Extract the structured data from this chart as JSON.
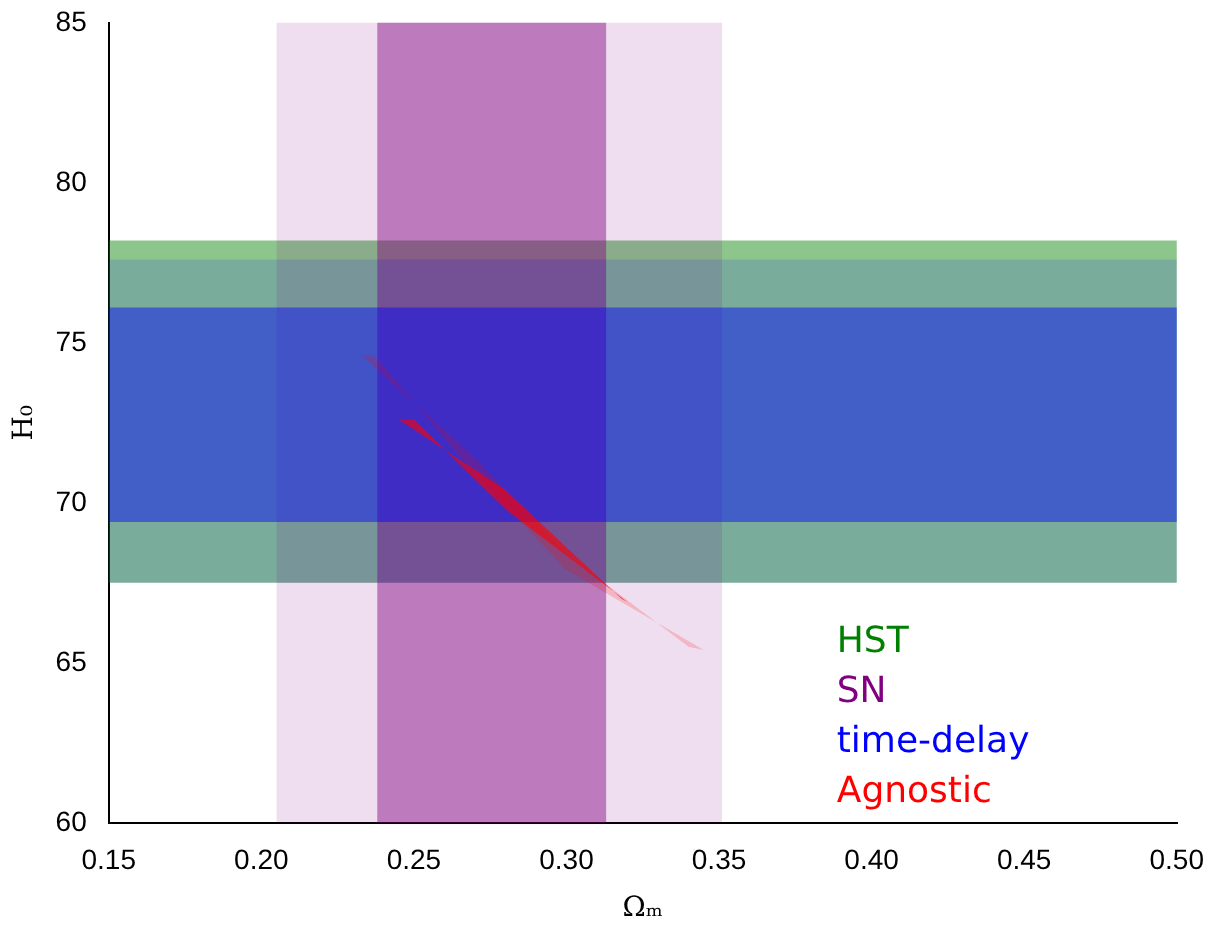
{
  "chart_data": {
    "type": "area",
    "xlabel": "Ωₘ",
    "ylabel": "H₀",
    "xlim": [
      0.15,
      0.5
    ],
    "xticks": [
      0.15,
      {
        "value": 0.2,
        "label": "0.20"
      },
      0.25,
      {
        "value": 0.3,
        "label": "0.30"
      },
      0.35,
      {
        "value": 0.4,
        "label": "0.40"
      },
      0.45,
      {
        "value": 0.5,
        "label": "0.50"
      }
    ],
    "ylim": [
      60,
      85
    ],
    "yticks": [
      60,
      65,
      70,
      75,
      80,
      85
    ],
    "grid": false,
    "legend": "bottom right",
    "bands": [
      {
        "axis": "y",
        "from": 67.5,
        "to": 78.2,
        "label": "HST",
        "color": "#008000"
      },
      {
        "axis": "x",
        "from": 0.205,
        "to": 0.351,
        "color": "#800080"
      },
      {
        "axis": "x",
        "from": 0.238,
        "to": 0.313,
        "label": "SN",
        "color": "#800080"
      },
      {
        "axis": "y",
        "from": 67.5,
        "to": 77.6,
        "color": "#0000ff"
      },
      {
        "axis": "y",
        "from": 69.4,
        "to": 76.1,
        "label": "time-delay",
        "color": "#0000ff"
      }
    ],
    "series": [
      {
        "color": "#ff0000",
        "x": [
          0.233,
          0.237,
          0.27,
          0.3,
          0.345,
          0.34,
          0.3,
          0.27,
          0.233
        ],
        "values": [
          74.6,
          74.6,
          70.9,
          67.9,
          65.4,
          65.5,
          68.4,
          71.4,
          74.6
        ]
      },
      {
        "name": "Agnostic",
        "color": "#ff0000",
        "x": [
          0.245,
          0.25,
          0.28,
          0.32,
          0.318,
          0.28,
          0.245
        ],
        "values": [
          72.6,
          72.6,
          69.8,
          66.9,
          67.0,
          70.4,
          72.6
        ]
      }
    ]
  }
}
